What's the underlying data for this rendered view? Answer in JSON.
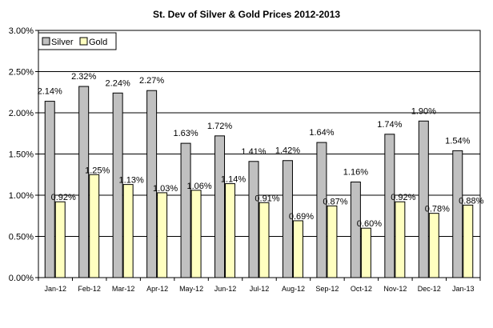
{
  "chart_data": {
    "type": "bar",
    "title": "St. Dev of Silver & Gold Prices  2012-2013",
    "xlabel": "",
    "ylabel": "",
    "ylim": [
      0,
      3.0
    ],
    "yticks": [
      "0.00%",
      "0.50%",
      "1.00%",
      "1.50%",
      "2.00%",
      "2.50%",
      "3.00%"
    ],
    "grid": true,
    "legend_position": "top-left",
    "categories": [
      "Jan-12",
      "Feb-12",
      "Mar-12",
      "Apr-12",
      "May-12",
      "Jun-12",
      "Jul-12",
      "Aug-12",
      "Sep-12",
      "Oct-12",
      "Nov-12",
      "Dec-12",
      "Jan-13"
    ],
    "series": [
      {
        "name": "Silver",
        "color": "#c0c0c0",
        "values": [
          2.14,
          2.32,
          2.24,
          2.27,
          1.63,
          1.72,
          1.41,
          1.42,
          1.64,
          1.16,
          1.74,
          1.9,
          1.54
        ],
        "labels": [
          "2.14%",
          "2.32%",
          "2.24%",
          "2.27%",
          "1.63%",
          "1.72%",
          "1.41%",
          "1.42%",
          "1.64%",
          "1.16%",
          "1.74%",
          "1.90%",
          "1.54%"
        ]
      },
      {
        "name": "Gold",
        "color": "#ffffc0",
        "values": [
          0.92,
          1.25,
          1.13,
          1.03,
          1.06,
          1.14,
          0.91,
          0.69,
          0.87,
          0.6,
          0.92,
          0.78,
          0.88
        ],
        "labels": [
          "0.92%",
          "1.25%",
          "1.13%",
          "1.03%",
          "1.06%",
          "1.14%",
          "0.91%",
          "0.69%",
          "0.87%",
          "0.60%",
          "0.92%",
          "0.78%",
          "0.88%"
        ]
      }
    ]
  }
}
